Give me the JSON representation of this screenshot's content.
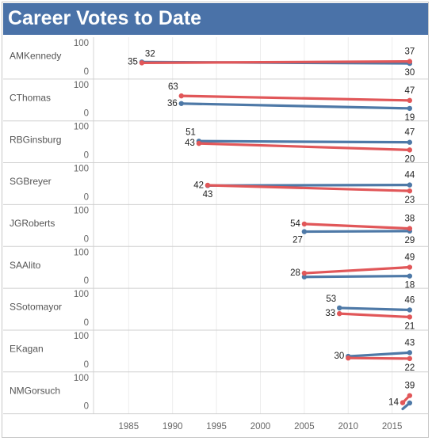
{
  "title": "Career Votes to Date",
  "chart_data": {
    "type": "line",
    "title": "Career Votes to Date",
    "xlabel": "",
    "ylabel": "",
    "x_ticks": [
      1985,
      1990,
      1995,
      2000,
      2005,
      2010,
      2015
    ],
    "xlim": [
      1981,
      2019
    ],
    "ylim": [
      0,
      100
    ],
    "y_ticks": [
      0,
      100
    ],
    "colors": {
      "blue": "#4e79a7",
      "red": "#e15759"
    },
    "grid": true,
    "rows": [
      {
        "justice": "AMKennedy",
        "series": [
          {
            "color": "blue",
            "x": [
              1986.5,
              2017
            ],
            "y": [
              35,
              30
            ]
          },
          {
            "color": "red",
            "x": [
              1986.5,
              2017
            ],
            "y": [
              32,
              37
            ]
          }
        ]
      },
      {
        "justice": "CThomas",
        "series": [
          {
            "color": "blue",
            "x": [
              1991,
              2017
            ],
            "y": [
              36,
              19
            ]
          },
          {
            "color": "red",
            "x": [
              1991,
              2017
            ],
            "y": [
              63,
              47
            ]
          }
        ]
      },
      {
        "justice": "RBGinsburg",
        "series": [
          {
            "color": "blue",
            "x": [
              1993,
              2017
            ],
            "y": [
              51,
              47
            ]
          },
          {
            "color": "red",
            "x": [
              1993,
              2017
            ],
            "y": [
              43,
              20
            ]
          }
        ]
      },
      {
        "justice": "SGBreyer",
        "series": [
          {
            "color": "blue",
            "x": [
              1994,
              2017
            ],
            "y": [
              42,
              44
            ]
          },
          {
            "color": "red",
            "x": [
              1994,
              2017
            ],
            "y": [
              43,
              23
            ]
          }
        ]
      },
      {
        "justice": "JGRoberts",
        "series": [
          {
            "color": "blue",
            "x": [
              2005,
              2017
            ],
            "y": [
              27,
              29
            ]
          },
          {
            "color": "red",
            "x": [
              2005,
              2017
            ],
            "y": [
              54,
              38
            ]
          }
        ]
      },
      {
        "justice": "SAAlito",
        "series": [
          {
            "color": "blue",
            "x": [
              2005,
              2017
            ],
            "y": [
              15,
              18
            ]
          },
          {
            "color": "red",
            "x": [
              2005,
              2017
            ],
            "y": [
              28,
              49
            ]
          }
        ]
      },
      {
        "justice": "SSotomayor",
        "series": [
          {
            "color": "blue",
            "x": [
              2009,
              2017
            ],
            "y": [
              53,
              46
            ]
          },
          {
            "color": "red",
            "x": [
              2009,
              2017
            ],
            "y": [
              33,
              21
            ]
          }
        ]
      },
      {
        "justice": "EKagan",
        "series": [
          {
            "color": "blue",
            "x": [
              2010,
              2017
            ],
            "y": [
              30,
              43
            ]
          },
          {
            "color": "red",
            "x": [
              2010,
              2017
            ],
            "y": [
              24,
              22
            ]
          }
        ]
      },
      {
        "justice": "NMGorsuch",
        "series": [
          {
            "color": "blue",
            "x": [
              2016.2,
              2017
            ],
            "y": [
              -8,
              13
            ]
          },
          {
            "color": "red",
            "x": [
              2016.2,
              2017
            ],
            "y": [
              14,
              39
            ]
          }
        ]
      }
    ],
    "data_labels": [
      {
        "row": 0,
        "x": 1986.5,
        "y": 35,
        "text": "35",
        "side": "left"
      },
      {
        "row": 0,
        "x": 1986.5,
        "y": 32,
        "text": "32",
        "side": "above-right"
      },
      {
        "row": 0,
        "x": 2017,
        "y": 37,
        "text": "37",
        "side": "above"
      },
      {
        "row": 0,
        "x": 2017,
        "y": 30,
        "text": "30",
        "side": "below"
      },
      {
        "row": 1,
        "x": 1991,
        "y": 63,
        "text": "63",
        "side": "above-left"
      },
      {
        "row": 1,
        "x": 1991,
        "y": 36,
        "text": "36",
        "side": "left"
      },
      {
        "row": 1,
        "x": 2017,
        "y": 47,
        "text": "47",
        "side": "above"
      },
      {
        "row": 1,
        "x": 2017,
        "y": 19,
        "text": "19",
        "side": "below"
      },
      {
        "row": 2,
        "x": 1993,
        "y": 51,
        "text": "51",
        "side": "above-left"
      },
      {
        "row": 2,
        "x": 1993,
        "y": 43,
        "text": "43",
        "side": "left"
      },
      {
        "row": 2,
        "x": 2017,
        "y": 47,
        "text": "47",
        "side": "above"
      },
      {
        "row": 2,
        "x": 2017,
        "y": 20,
        "text": "20",
        "side": "below"
      },
      {
        "row": 3,
        "x": 1994,
        "y": 42,
        "text": "42",
        "side": "left"
      },
      {
        "row": 3,
        "x": 1994,
        "y": 43,
        "text": "43",
        "side": "below"
      },
      {
        "row": 3,
        "x": 2017,
        "y": 44,
        "text": "44",
        "side": "above"
      },
      {
        "row": 3,
        "x": 2017,
        "y": 23,
        "text": "23",
        "side": "below"
      },
      {
        "row": 4,
        "x": 2005,
        "y": 54,
        "text": "54",
        "side": "left"
      },
      {
        "row": 4,
        "x": 2005,
        "y": 27,
        "text": "27",
        "side": "below-left"
      },
      {
        "row": 4,
        "x": 2017,
        "y": 38,
        "text": "38",
        "side": "above"
      },
      {
        "row": 4,
        "x": 2017,
        "y": 29,
        "text": "29",
        "side": "below"
      },
      {
        "row": 5,
        "x": 2005,
        "y": 28,
        "text": "28",
        "side": "left"
      },
      {
        "row": 5,
        "x": 2017,
        "y": 49,
        "text": "49",
        "side": "above"
      },
      {
        "row": 5,
        "x": 2017,
        "y": 18,
        "text": "18",
        "side": "below"
      },
      {
        "row": 6,
        "x": 2009,
        "y": 53,
        "text": "53",
        "side": "above-left"
      },
      {
        "row": 6,
        "x": 2009,
        "y": 33,
        "text": "33",
        "side": "left"
      },
      {
        "row": 6,
        "x": 2017,
        "y": 46,
        "text": "46",
        "side": "above"
      },
      {
        "row": 6,
        "x": 2017,
        "y": 21,
        "text": "21",
        "side": "below"
      },
      {
        "row": 7,
        "x": 2010,
        "y": 30,
        "text": "30",
        "side": "left"
      },
      {
        "row": 7,
        "x": 2017,
        "y": 43,
        "text": "43",
        "side": "above"
      },
      {
        "row": 7,
        "x": 2017,
        "y": 22,
        "text": "22",
        "side": "below"
      },
      {
        "row": 8,
        "x": 2017,
        "y": 39,
        "text": "39",
        "side": "above"
      },
      {
        "row": 8,
        "x": 2016.2,
        "y": 14,
        "text": "14",
        "side": "left"
      }
    ]
  }
}
